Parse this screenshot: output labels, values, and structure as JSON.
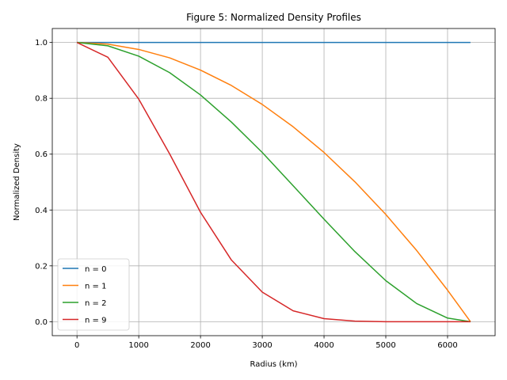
{
  "chart_data": {
    "type": "line",
    "title": "Figure 5: Normalized Density Profiles",
    "xlabel": "Radius (km)",
    "ylabel": "Normalized Density",
    "xlim": [
      -400,
      6770
    ],
    "ylim": [
      -0.05,
      1.05
    ],
    "xticks": [
      0,
      1000,
      2000,
      3000,
      4000,
      5000,
      6000
    ],
    "yticks": [
      0.0,
      0.2,
      0.4,
      0.6,
      0.8,
      1.0
    ],
    "grid": true,
    "legend_position": "lower-left",
    "x": [
      0,
      500,
      1000,
      1500,
      2000,
      2500,
      3000,
      3500,
      4000,
      4500,
      5000,
      5500,
      6000,
      6371
    ],
    "series": [
      {
        "name": "n = 0",
        "color": "#1f77b4",
        "values": [
          1.0,
          1.0,
          1.0,
          1.0,
          1.0,
          1.0,
          1.0,
          1.0,
          1.0,
          1.0,
          1.0,
          1.0,
          1.0,
          1.0
        ]
      },
      {
        "name": "n = 1",
        "color": "#ff7f0e",
        "values": [
          1.0,
          0.994,
          0.975,
          0.945,
          0.901,
          0.846,
          0.778,
          0.698,
          0.606,
          0.501,
          0.384,
          0.255,
          0.113,
          0.0
        ]
      },
      {
        "name": "n = 2",
        "color": "#2ca02c",
        "values": [
          1.0,
          0.988,
          0.951,
          0.892,
          0.812,
          0.715,
          0.606,
          0.487,
          0.367,
          0.251,
          0.147,
          0.065,
          0.013,
          0.0
        ]
      },
      {
        "name": "n = 9",
        "color": "#d62728",
        "values": [
          1.0,
          0.947,
          0.797,
          0.601,
          0.392,
          0.221,
          0.106,
          0.039,
          0.011,
          0.002,
          0.0,
          0.0,
          0.0,
          0.0
        ]
      }
    ]
  }
}
